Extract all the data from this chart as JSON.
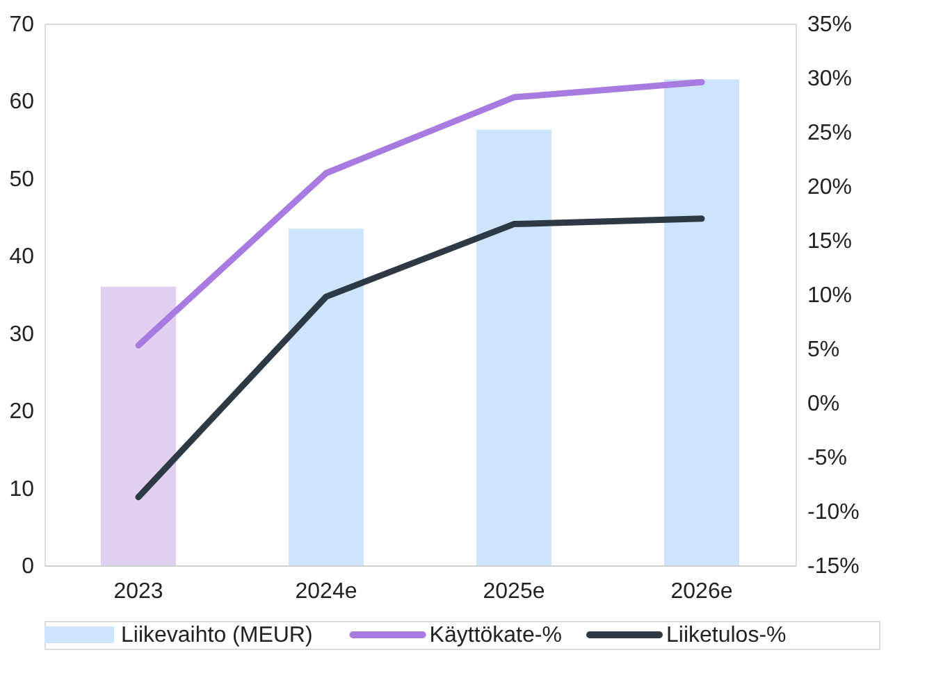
{
  "chart_data": {
    "type": "bar",
    "categories": [
      "2023",
      "2024e",
      "2025e",
      "2026e"
    ],
    "series": [
      {
        "name": "Liikevaihto (MEUR)",
        "color": "#cce4fc",
        "colors": [
          "#e2d0f2",
          "#cce4fc",
          "#cce4fc",
          "#cce4fc"
        ],
        "values": [
          36.0,
          43.5,
          56.3,
          62.8
        ]
      },
      {
        "name": "Käyttökate-%",
        "type": "line",
        "axis": "y2",
        "color": "#a77be0",
        "values": [
          5.3,
          21.2,
          28.2,
          29.6
        ]
      },
      {
        "name": "Liiketulos-%",
        "type": "line",
        "axis": "y2",
        "color": "#2d3a46",
        "values": [
          -8.7,
          9.8,
          16.5,
          17.0
        ]
      }
    ],
    "ylim": [
      0,
      70
    ],
    "yticks": [
      0,
      10,
      20,
      30,
      40,
      50,
      60,
      70
    ],
    "y2lim": [
      -15,
      35
    ],
    "y2ticks": [
      {
        "value": -15,
        "label": "-15%"
      },
      {
        "value": -10,
        "label": "-10%"
      },
      {
        "value": -5,
        "label": "-5%"
      },
      {
        "value": 0,
        "label": "0%"
      },
      {
        "value": 5,
        "label": "5%"
      },
      {
        "value": 10,
        "label": "10%"
      },
      {
        "value": 15,
        "label": "15%"
      },
      {
        "value": 20,
        "label": "20%"
      },
      {
        "value": 25,
        "label": "25%"
      },
      {
        "value": 30,
        "label": "30%"
      },
      {
        "value": 35,
        "label": "35%"
      }
    ],
    "grid": false,
    "legend": "bottom",
    "marker": "none",
    "line_style": "solid"
  }
}
